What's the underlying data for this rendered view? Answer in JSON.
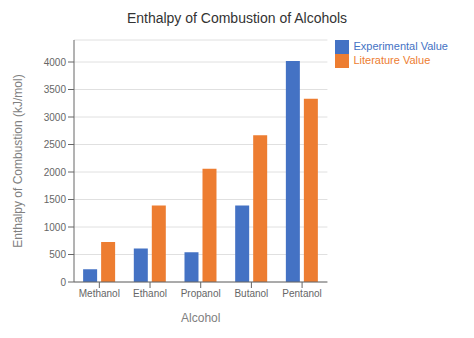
{
  "chart_data": {
    "type": "bar",
    "title": "Enthalpy of Combustion of Alcohols",
    "xlabel": "Alcohol",
    "ylabel": "Enthalpy of Combustion (kJ/mol)",
    "categories": [
      "Methanol",
      "Ethanol",
      "Propanol",
      "Butanol",
      "Pentanol"
    ],
    "series": [
      {
        "name": "Experimental Value",
        "color": "#4472C4",
        "values": [
          230,
          610,
          540,
          1390,
          4020
        ]
      },
      {
        "name": "Literature Value",
        "color": "#ED7D31",
        "values": [
          726,
          1390,
          2058,
          2670,
          3330
        ]
      }
    ],
    "ylim": [
      0,
      4400
    ],
    "yticks": [
      0,
      500,
      1000,
      1500,
      2000,
      2500,
      3000,
      3500,
      4000
    ],
    "grid": true,
    "legend": "right"
  }
}
